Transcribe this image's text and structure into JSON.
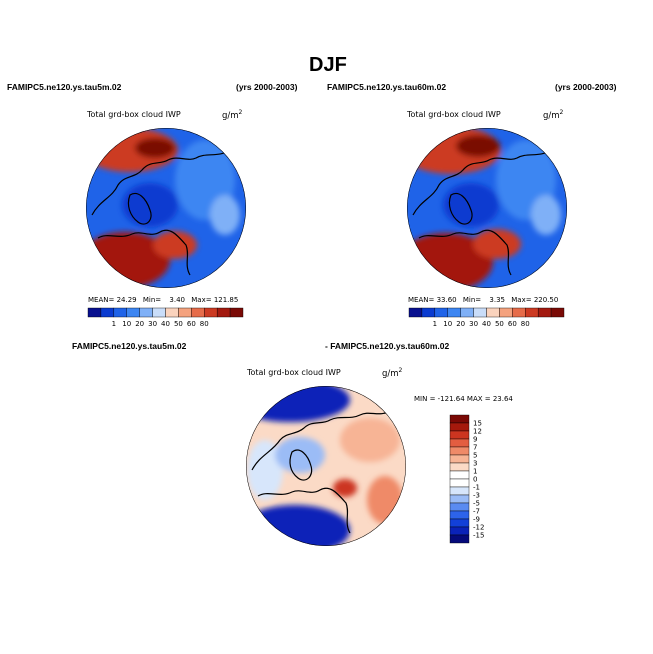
{
  "page": {
    "season_title": "DJF"
  },
  "colors": {
    "abs_palette": [
      "#08108f",
      "#0a3bd0",
      "#1f63e8",
      "#3d86f2",
      "#7fb0f7",
      "#c9ddf9",
      "#fad3bd",
      "#f4a27e",
      "#e66c4a",
      "#cc3a22",
      "#a3190f",
      "#7a0a06"
    ],
    "diff_palette": [
      "#050a7a",
      "#0a22b8",
      "#1240d8",
      "#2d63ea",
      "#5a8bf1",
      "#9bbcf6",
      "#d7e6fb",
      "#ffffff",
      "#fbdac6",
      "#f7b495",
      "#ef8a68",
      "#e35d40",
      "#cc3520",
      "#a5190c",
      "#7a0905"
    ]
  },
  "chart_data": [
    {
      "type": "heatmap",
      "projection": "polar-stereographic (north pole)",
      "case_title": "FAMIPC5.ne120.ys.tau5m.02",
      "years": "(yrs 2000-2003)",
      "subtitle": "Total grd-box cloud IWP",
      "units": "g/m",
      "units_exp": "2",
      "stats": {
        "mean_label": "MEAN=",
        "mean": "24.29",
        "min_label": "Min=",
        "min": "3.40",
        "max_label": "Max=",
        "max": "121.85"
      },
      "colorbar": {
        "orientation": "horizontal",
        "ticks": [
          "1",
          "10",
          "20",
          "30",
          "40",
          "50",
          "60",
          "80"
        ]
      }
    },
    {
      "type": "heatmap",
      "projection": "polar-stereographic (north pole)",
      "case_title": "FAMIPC5.ne120.ys.tau60m.02",
      "years": "(yrs 2000-2003)",
      "subtitle": "Total grd-box cloud IWP",
      "units": "g/m",
      "units_exp": "2",
      "stats": {
        "mean_label": "MEAN=",
        "mean": "33.60",
        "min_label": "Min=",
        "min": "3.35",
        "max_label": "Max=",
        "max": "220.50"
      },
      "colorbar": {
        "orientation": "horizontal",
        "ticks": [
          "1",
          "10",
          "20",
          "30",
          "40",
          "50",
          "60",
          "80"
        ]
      }
    },
    {
      "type": "heatmap",
      "projection": "polar-stereographic (north pole)",
      "diff_left": "FAMIPC5.ne120.ys.tau5m.02",
      "diff_right": "- FAMIPC5.ne120.ys.tau60m.02",
      "subtitle": "Total grd-box cloud IWP",
      "units": "g/m",
      "units_exp": "2",
      "stats": {
        "minmax_label": "MIN = -121.64 MAX = 23.64"
      },
      "colorbar": {
        "orientation": "vertical",
        "ticks": [
          "15",
          "12",
          "9",
          "7",
          "5",
          "3",
          "1",
          "0",
          "-1",
          "-3",
          "-5",
          "-7",
          "-9",
          "-12",
          "-15"
        ]
      }
    }
  ]
}
